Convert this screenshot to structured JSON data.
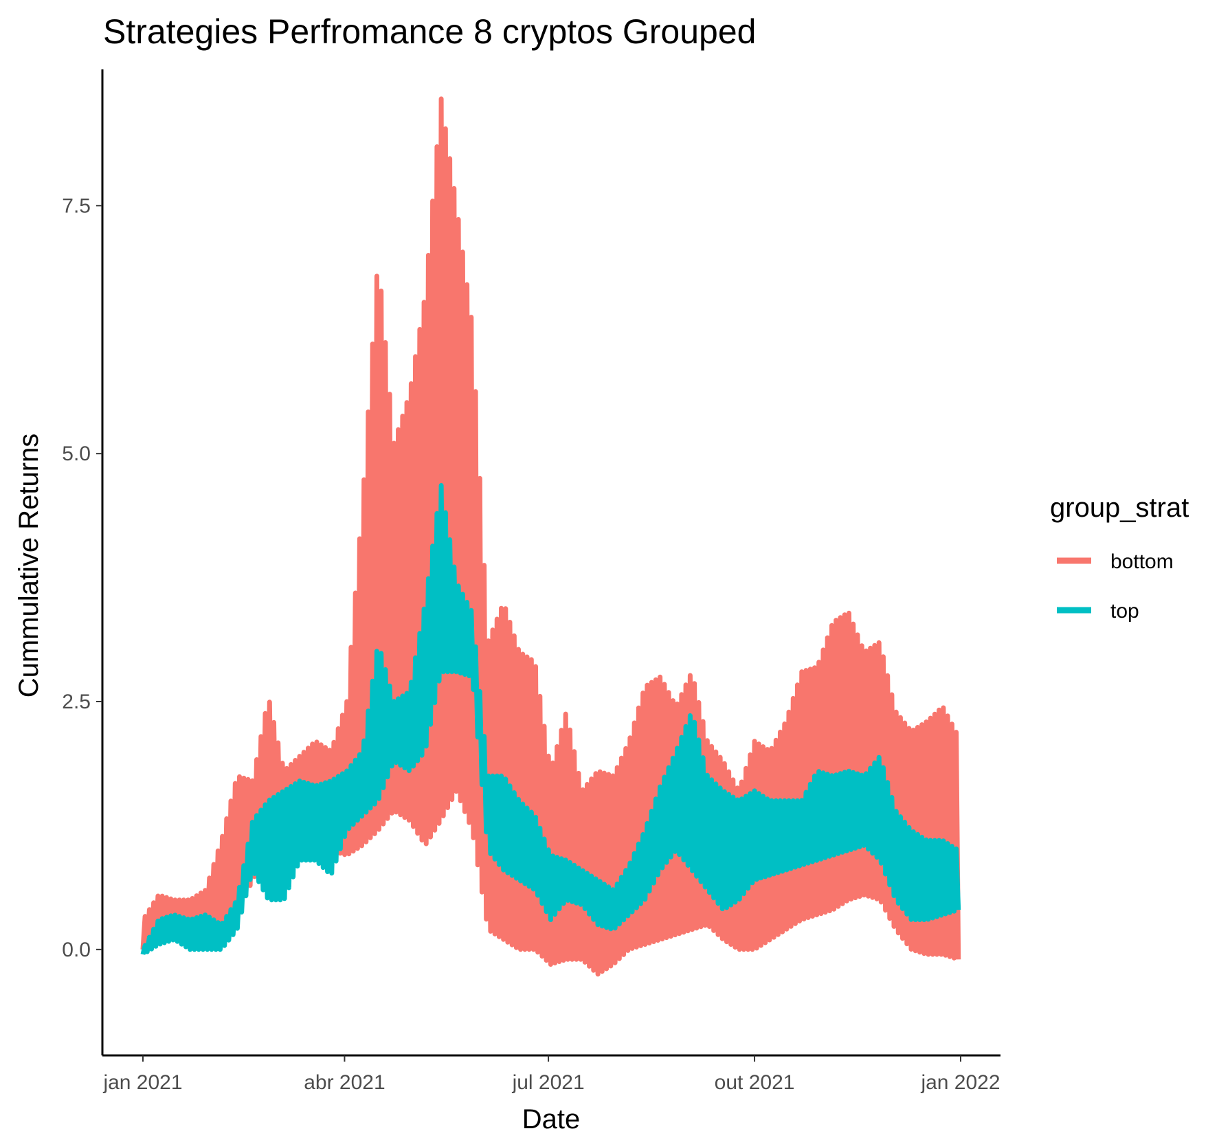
{
  "chart_data": {
    "type": "line",
    "title": "Strategies Perfromance 8 cryptos Grouped",
    "xlabel": "Date",
    "ylabel": "Cummulative Returns",
    "x_range": [
      "2021-01-01",
      "2022-01-01"
    ],
    "ylim": [
      -0.65,
      9.05
    ],
    "x_ticks": [
      {
        "date": "2021-01-01",
        "label": "jan 2021"
      },
      {
        "date": "2021-04-01",
        "label": "abr 2021"
      },
      {
        "date": "2021-07-01",
        "label": "jul 2021"
      },
      {
        "date": "2021-10-01",
        "label": "out 2021"
      },
      {
        "date": "2022-01-01",
        "label": "jan 2022"
      }
    ],
    "y_ticks": [
      {
        "value": 0,
        "label": "0.0"
      },
      {
        "value": 2.5,
        "label": "2.5"
      },
      {
        "value": 5,
        "label": "5.0"
      },
      {
        "value": 7.5,
        "label": "7.5"
      }
    ],
    "grid": false,
    "legend": {
      "title": "group_strat",
      "position": "right"
    },
    "series": [
      {
        "name": "bottom",
        "color": "#F8766D",
        "x": [
          "2021-01-01",
          "2021-01-08",
          "2021-01-15",
          "2021-01-22",
          "2021-01-29",
          "2021-02-05",
          "2021-02-12",
          "2021-02-19",
          "2021-02-26",
          "2021-03-05",
          "2021-03-12",
          "2021-03-19",
          "2021-03-26",
          "2021-04-02",
          "2021-04-09",
          "2021-04-16",
          "2021-04-23",
          "2021-04-30",
          "2021-05-07",
          "2021-05-14",
          "2021-05-21",
          "2021-05-28",
          "2021-06-04",
          "2021-06-11",
          "2021-06-18",
          "2021-06-25",
          "2021-07-02",
          "2021-07-09",
          "2021-07-16",
          "2021-07-23",
          "2021-07-30",
          "2021-08-06",
          "2021-08-13",
          "2021-08-20",
          "2021-08-27",
          "2021-09-03",
          "2021-09-10",
          "2021-09-17",
          "2021-09-24",
          "2021-10-01",
          "2021-10-08",
          "2021-10-15",
          "2021-10-22",
          "2021-10-29",
          "2021-11-05",
          "2021-11-12",
          "2021-11-19",
          "2021-11-26",
          "2021-12-03",
          "2021-12-10",
          "2021-12-17",
          "2021-12-24",
          "2021-12-31"
        ],
        "low": [
          0.0,
          0.1,
          0.25,
          0.2,
          0.25,
          0.2,
          0.35,
          0.7,
          1.0,
          1.0,
          1.1,
          1.2,
          1.0,
          0.95,
          1.05,
          1.2,
          1.4,
          1.3,
          1.05,
          1.3,
          1.6,
          1.2,
          0.2,
          0.1,
          0.0,
          0.0,
          -0.15,
          -0.1,
          -0.1,
          -0.25,
          -0.15,
          0.0,
          0.05,
          0.1,
          0.15,
          0.2,
          0.25,
          0.1,
          0.0,
          0.0,
          0.1,
          0.2,
          0.3,
          0.35,
          0.4,
          0.5,
          0.55,
          0.5,
          0.2,
          0.0,
          -0.05,
          -0.05,
          -0.1
        ],
        "high": [
          0.3,
          0.55,
          0.5,
          0.5,
          0.6,
          1.1,
          1.75,
          1.7,
          2.55,
          1.8,
          1.95,
          2.1,
          2.0,
          2.5,
          4.5,
          7.0,
          5.1,
          5.6,
          6.6,
          8.6,
          7.5,
          6.3,
          3.1,
          3.5,
          3.0,
          2.9,
          1.8,
          2.4,
          1.6,
          1.8,
          1.75,
          2.1,
          2.65,
          2.75,
          2.45,
          2.8,
          2.1,
          1.9,
          1.6,
          2.1,
          2.0,
          2.3,
          2.8,
          2.85,
          3.3,
          3.4,
          3.0,
          3.1,
          2.4,
          2.2,
          2.3,
          2.45,
          2.15
        ]
      },
      {
        "name": "top",
        "color": "#00BFC4",
        "x": [
          "2021-01-01",
          "2021-01-08",
          "2021-01-15",
          "2021-01-22",
          "2021-01-29",
          "2021-02-05",
          "2021-02-12",
          "2021-02-19",
          "2021-02-26",
          "2021-03-05",
          "2021-03-12",
          "2021-03-19",
          "2021-03-26",
          "2021-04-02",
          "2021-04-09",
          "2021-04-16",
          "2021-04-23",
          "2021-04-30",
          "2021-05-07",
          "2021-05-14",
          "2021-05-21",
          "2021-05-28",
          "2021-06-04",
          "2021-06-11",
          "2021-06-18",
          "2021-06-25",
          "2021-07-02",
          "2021-07-09",
          "2021-07-16",
          "2021-07-23",
          "2021-07-30",
          "2021-08-06",
          "2021-08-13",
          "2021-08-20",
          "2021-08-27",
          "2021-09-03",
          "2021-09-10",
          "2021-09-17",
          "2021-09-24",
          "2021-10-01",
          "2021-10-08",
          "2021-10-15",
          "2021-10-22",
          "2021-10-29",
          "2021-11-05",
          "2021-11-12",
          "2021-11-19",
          "2021-11-26",
          "2021-12-03",
          "2021-12-10",
          "2021-12-17",
          "2021-12-24",
          "2021-12-31"
        ],
        "low": [
          -0.05,
          0.05,
          0.1,
          0.0,
          0.0,
          0.0,
          0.2,
          0.8,
          0.5,
          0.5,
          0.9,
          0.9,
          0.75,
          1.2,
          1.35,
          1.5,
          1.9,
          1.8,
          2.0,
          2.8,
          2.8,
          2.75,
          1.0,
          0.8,
          0.7,
          0.6,
          0.3,
          0.5,
          0.45,
          0.25,
          0.2,
          0.35,
          0.5,
          0.8,
          1.0,
          0.8,
          0.6,
          0.4,
          0.5,
          0.7,
          0.75,
          0.8,
          0.85,
          0.9,
          0.95,
          1.0,
          1.05,
          0.9,
          0.5,
          0.3,
          0.3,
          0.35,
          0.4
        ],
        "high": [
          0.0,
          0.3,
          0.35,
          0.3,
          0.35,
          0.25,
          0.5,
          1.3,
          1.5,
          1.6,
          1.7,
          1.65,
          1.7,
          1.8,
          2.0,
          3.1,
          2.5,
          2.6,
          3.5,
          4.7,
          3.7,
          3.4,
          1.75,
          1.75,
          1.5,
          1.35,
          0.95,
          0.9,
          0.8,
          0.7,
          0.6,
          0.85,
          1.2,
          1.65,
          2.0,
          2.4,
          1.75,
          1.6,
          1.5,
          1.6,
          1.5,
          1.5,
          1.5,
          1.8,
          1.75,
          1.8,
          1.75,
          1.95,
          1.4,
          1.2,
          1.1,
          1.1,
          1.0
        ]
      }
    ]
  }
}
